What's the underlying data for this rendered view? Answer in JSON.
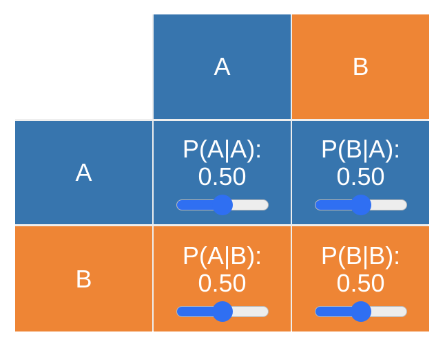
{
  "matrix": {
    "column_headers": [
      "A",
      "B"
    ],
    "row_headers": [
      "A",
      "B"
    ],
    "colors": {
      "A": "#3775ae",
      "B": "#ee8535",
      "slider_accent": "#2f6ff2",
      "slider_track": "#ededed",
      "cell_text": "#ffffff"
    },
    "cells": [
      [
        {
          "label": "P(A|A):",
          "value": "0.50",
          "slider": 0.5
        },
        {
          "label": "P(B|A):",
          "value": "0.50",
          "slider": 0.5
        }
      ],
      [
        {
          "label": "P(A|B):",
          "value": "0.50",
          "slider": 0.5
        },
        {
          "label": "P(B|B):",
          "value": "0.50",
          "slider": 0.5
        }
      ]
    ]
  }
}
